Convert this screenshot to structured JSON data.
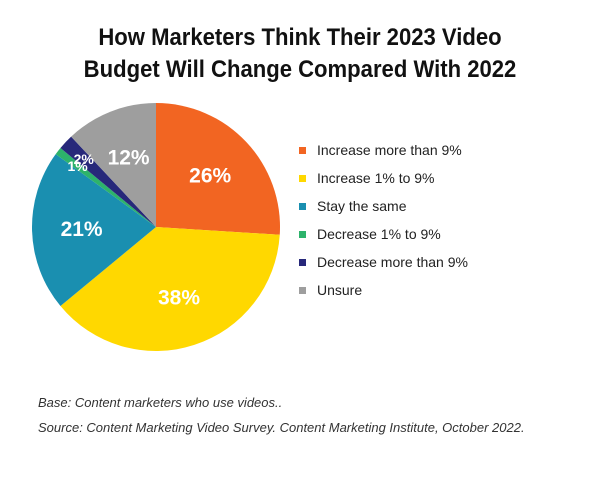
{
  "chart_data": {
    "type": "pie",
    "title_lines": [
      "How Marketers Think Their 2023 Video",
      "Budget Will Change Compared With 2022"
    ],
    "slices": [
      {
        "label": "Increase more than 9%",
        "value": 26,
        "value_label": "26%",
        "color": "#F26522"
      },
      {
        "label": "Increase 1% to 9%",
        "value": 38,
        "value_label": "38%",
        "color": "#FFD800"
      },
      {
        "label": "Stay the same",
        "value": 21,
        "value_label": "21%",
        "color": "#1A8FB0"
      },
      {
        "label": "Decrease 1% to 9%",
        "value": 1,
        "value_label": "1%",
        "color": "#2DB36B"
      },
      {
        "label": "Decrease more than 9%",
        "value": 2,
        "value_label": "2%",
        "color": "#27287A"
      },
      {
        "label": "Unsure",
        "value": 12,
        "value_label": "12%",
        "color": "#9E9E9E"
      }
    ],
    "start_angle_deg": 0,
    "direction": "clockwise",
    "legend_position": "right"
  },
  "footnotes": [
    "Base: Content marketers who use videos..",
    "Source: Content Marketing Video Survey. Content Marketing Institute, October 2022."
  ]
}
